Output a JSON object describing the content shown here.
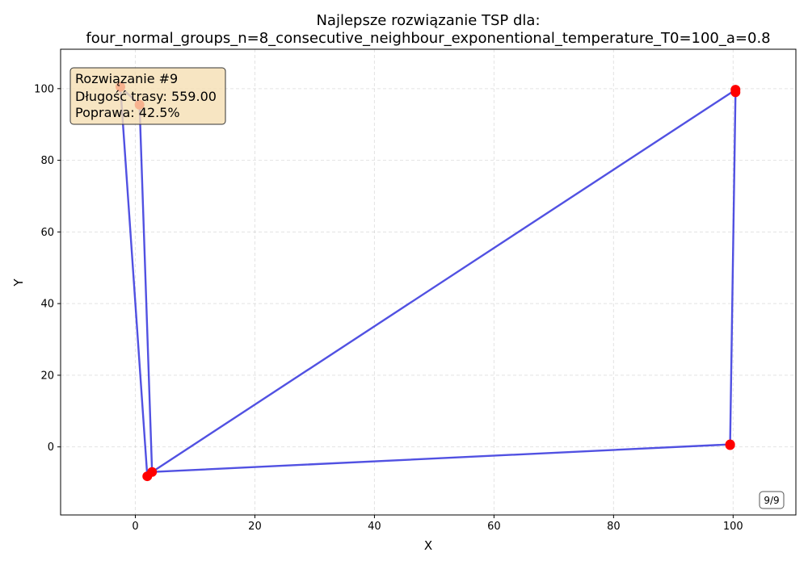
{
  "chart_data": {
    "type": "scatter",
    "title_line1": "Najlepsze rozwiązanie TSP dla:",
    "title_line2": "four_normal_groups_n=8_consecutive_neighbour_exponentional_temperature_T0=100_a=0.8",
    "xlabel": "X",
    "ylabel": "Y",
    "xlim": [
      -12.5,
      110.5
    ],
    "ylim": [
      -19,
      111
    ],
    "xticks": [
      0,
      20,
      40,
      60,
      80,
      100
    ],
    "yticks": [
      0,
      20,
      40,
      60,
      80,
      100
    ],
    "grid": true,
    "route_color": "#3333dd",
    "point_color": "#ff0000",
    "points": [
      {
        "x": -2.5,
        "y": 100.5
      },
      {
        "x": 0.7,
        "y": 95.5
      },
      {
        "x": 2.0,
        "y": -8.2
      },
      {
        "x": 2.8,
        "y": -7.0
      },
      {
        "x": 99.5,
        "y": 0.7
      },
      {
        "x": 100.4,
        "y": 99.0
      },
      {
        "x": 100.4,
        "y": 99.7
      },
      {
        "x": 99.5,
        "y": 0.5
      }
    ],
    "route": [
      {
        "x": -2.5,
        "y": 100.5
      },
      {
        "x": 2.0,
        "y": -8.2
      },
      {
        "x": 2.8,
        "y": -7.0
      },
      {
        "x": 99.5,
        "y": 0.7
      },
      {
        "x": 100.4,
        "y": 99.0
      },
      {
        "x": 100.4,
        "y": 99.7
      },
      {
        "x": 2.8,
        "y": -7.0
      },
      {
        "x": 0.7,
        "y": 95.5
      },
      {
        "x": -2.5,
        "y": 100.5
      }
    ],
    "info_box": {
      "line1": "Rozwiązanie #9",
      "line2": "Długość trasy: 559.00",
      "line3": "Poprawa: 42.5%",
      "background": "#f5deb3"
    },
    "counter": "9/9"
  }
}
